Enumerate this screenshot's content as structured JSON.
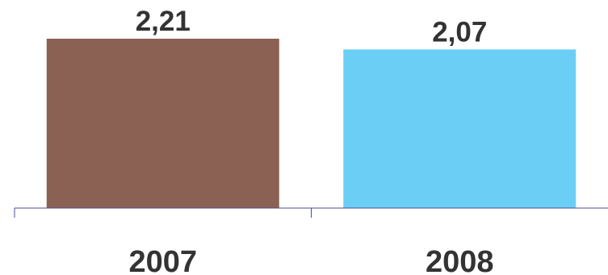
{
  "chart_data": {
    "type": "bar",
    "categories": [
      "2007",
      "2008"
    ],
    "values": [
      2.21,
      2.07
    ],
    "value_labels": [
      "2,21",
      "2,07"
    ],
    "colors": [
      "#8B6153",
      "#6BCFF5"
    ],
    "axis_color": "#4B4BA0",
    "ylim": [
      0,
      2.21
    ],
    "grid": false,
    "title": "",
    "xlabel": "",
    "ylabel": ""
  }
}
